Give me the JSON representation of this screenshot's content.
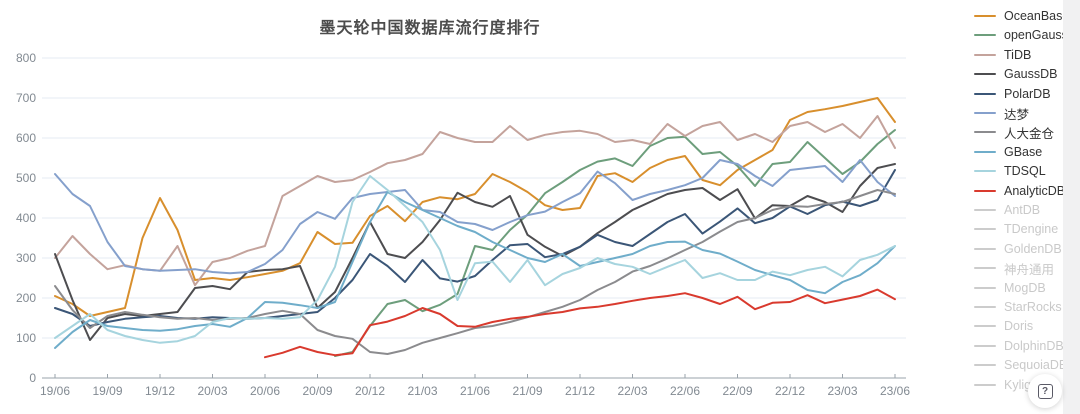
{
  "title": {
    "text": "墨天轮中国数据库流行度排行",
    "color": "#4c4c4c"
  },
  "help_button": {
    "glyph": "?"
  },
  "axis_colors": {
    "grid": "#e4ebf3",
    "axis_line": "#9aa3ab",
    "tick_label": "#828a92"
  },
  "chart_data": {
    "type": "line",
    "title": "墨天轮中国数据库流行度排行",
    "xlabel": "",
    "ylabel": "",
    "ylim": [
      0,
      800
    ],
    "y_ticks": [
      0,
      100,
      200,
      300,
      400,
      500,
      600,
      700,
      800
    ],
    "grid": true,
    "legend_position": "right",
    "x": [
      "19/06",
      "19/07",
      "19/08",
      "19/09",
      "19/10",
      "19/11",
      "19/12",
      "20/01",
      "20/02",
      "20/03",
      "20/04",
      "20/05",
      "20/06",
      "20/07",
      "20/08",
      "20/09",
      "20/10",
      "20/11",
      "20/12",
      "21/01",
      "21/02",
      "21/03",
      "21/04",
      "21/05",
      "21/06",
      "21/07",
      "21/08",
      "21/09",
      "21/10",
      "21/11",
      "21/12",
      "22/01",
      "22/02",
      "22/03",
      "22/04",
      "22/05",
      "22/06",
      "22/07",
      "22/08",
      "22/09",
      "22/10",
      "22/11",
      "22/12",
      "23/01",
      "23/02",
      "23/03",
      "23/04",
      "23/05",
      "23/06"
    ],
    "x_tick_labels": [
      "19/06",
      "19/09",
      "19/12",
      "20/03",
      "20/06",
      "20/09",
      "20/12",
      "21/03",
      "21/06",
      "21/09",
      "21/12",
      "22/03",
      "22/06",
      "22/09",
      "22/12",
      "23/03",
      "23/06"
    ],
    "series": [
      {
        "name": "OceanBase",
        "color": "#d88f2d",
        "active": true,
        "values": [
          205,
          185,
          155,
          165,
          175,
          350,
          450,
          370,
          245,
          250,
          245,
          252,
          260,
          268,
          287,
          365,
          335,
          338,
          405,
          430,
          392,
          440,
          452,
          447,
          460,
          510,
          490,
          465,
          432,
          420,
          425,
          505,
          512,
          490,
          525,
          545,
          555,
          495,
          482,
          520,
          545,
          570,
          645,
          665,
          672,
          680,
          690,
          700,
          640
        ]
      },
      {
        "name": "openGauss",
        "color": "#6d9e7c",
        "active": true,
        "values": [
          null,
          null,
          null,
          null,
          null,
          null,
          null,
          null,
          null,
          null,
          null,
          null,
          null,
          null,
          null,
          null,
          55,
          65,
          130,
          185,
          195,
          167,
          183,
          210,
          330,
          320,
          370,
          408,
          462,
          490,
          520,
          541,
          549,
          530,
          580,
          600,
          603,
          560,
          565,
          530,
          480,
          535,
          540,
          590,
          550,
          510,
          540,
          585,
          620
        ]
      },
      {
        "name": "TiDB",
        "color": "#c4a39c",
        "active": true,
        "values": [
          300,
          355,
          310,
          272,
          282,
          272,
          268,
          330,
          232,
          290,
          300,
          318,
          330,
          455,
          480,
          505,
          490,
          495,
          515,
          537,
          545,
          560,
          615,
          600,
          590,
          590,
          630,
          595,
          608,
          615,
          618,
          610,
          590,
          595,
          585,
          635,
          605,
          630,
          640,
          595,
          610,
          590,
          630,
          640,
          615,
          635,
          600,
          655,
          575
        ]
      },
      {
        "name": "GaussDB",
        "color": "#4d4d50",
        "active": true,
        "values": [
          310,
          195,
          95,
          150,
          160,
          155,
          160,
          165,
          225,
          230,
          222,
          265,
          270,
          272,
          280,
          175,
          215,
          300,
          390,
          310,
          300,
          340,
          395,
          463,
          440,
          428,
          455,
          358,
          328,
          305,
          328,
          362,
          390,
          420,
          440,
          460,
          470,
          475,
          445,
          472,
          399,
          432,
          430,
          455,
          440,
          415,
          480,
          525,
          535
        ]
      },
      {
        "name": "PolarDB",
        "color": "#3b5677",
        "active": true,
        "values": [
          175,
          160,
          130,
          140,
          148,
          152,
          155,
          150,
          148,
          152,
          150,
          148,
          150,
          155,
          160,
          165,
          200,
          245,
          310,
          280,
          240,
          295,
          249,
          241,
          255,
          295,
          332,
          335,
          302,
          310,
          328,
          358,
          340,
          330,
          360,
          390,
          410,
          361,
          391,
          424,
          387,
          400,
          429,
          410,
          432,
          441,
          430,
          445,
          520
        ]
      },
      {
        "name": "达梦",
        "color": "#85a0cc",
        "active": true,
        "values": [
          510,
          460,
          430,
          340,
          280,
          272,
          268,
          270,
          272,
          265,
          262,
          265,
          285,
          320,
          385,
          415,
          398,
          450,
          460,
          465,
          470,
          420,
          415,
          390,
          385,
          370,
          390,
          407,
          416,
          440,
          462,
          516,
          487,
          445,
          460,
          470,
          482,
          500,
          545,
          535,
          505,
          480,
          520,
          525,
          530,
          490,
          545,
          490,
          455
        ]
      },
      {
        "name": "人大金仓",
        "color": "#8b8b8e",
        "active": true,
        "values": [
          230,
          170,
          125,
          155,
          165,
          158,
          152,
          148,
          150,
          145,
          148,
          150,
          160,
          168,
          160,
          120,
          105,
          98,
          65,
          60,
          70,
          88,
          100,
          112,
          125,
          130,
          140,
          152,
          165,
          178,
          195,
          220,
          240,
          266,
          280,
          299,
          320,
          340,
          366,
          390,
          400,
          420,
          430,
          428,
          435,
          440,
          455,
          470,
          460
        ]
      },
      {
        "name": "GBase",
        "color": "#6fadca",
        "active": true,
        "values": [
          75,
          115,
          145,
          130,
          125,
          120,
          118,
          122,
          130,
          135,
          128,
          150,
          190,
          188,
          182,
          175,
          190,
          290,
          390,
          465,
          440,
          420,
          400,
          380,
          365,
          340,
          320,
          300,
          290,
          310,
          280,
          290,
          300,
          310,
          330,
          340,
          341,
          320,
          311,
          291,
          270,
          257,
          245,
          220,
          212,
          240,
          257,
          287,
          330
        ]
      },
      {
        "name": "TDSQL",
        "color": "#a6d4de",
        "active": true,
        "values": [
          100,
          130,
          160,
          120,
          105,
          95,
          88,
          92,
          105,
          140,
          150,
          148,
          150,
          148,
          152,
          195,
          278,
          440,
          505,
          470,
          430,
          390,
          320,
          195,
          287,
          291,
          240,
          295,
          232,
          260,
          275,
          300,
          285,
          278,
          260,
          278,
          295,
          250,
          262,
          245,
          245,
          266,
          257,
          270,
          278,
          254,
          295,
          308,
          330
        ]
      },
      {
        "name": "AnalyticDB",
        "color": "#d93a2e",
        "active": true,
        "values": [
          null,
          null,
          null,
          null,
          null,
          null,
          null,
          null,
          null,
          null,
          null,
          null,
          52,
          63,
          78,
          65,
          57,
          62,
          132,
          141,
          155,
          175,
          160,
          130,
          128,
          140,
          148,
          153,
          160,
          165,
          174,
          178,
          185,
          193,
          200,
          205,
          212,
          200,
          185,
          203,
          172,
          188,
          190,
          207,
          187,
          196,
          205,
          221,
          197
        ]
      },
      {
        "name": "AntDB",
        "color": "#cccccc",
        "active": false,
        "values": []
      },
      {
        "name": "TDengine",
        "color": "#cccccc",
        "active": false,
        "values": []
      },
      {
        "name": "GoldenDB",
        "color": "#cccccc",
        "active": false,
        "values": []
      },
      {
        "name": "神舟通用",
        "color": "#cccccc",
        "active": false,
        "values": []
      },
      {
        "name": "MogDB",
        "color": "#cccccc",
        "active": false,
        "values": []
      },
      {
        "name": "StarRocks",
        "color": "#cccccc",
        "active": false,
        "values": []
      },
      {
        "name": "Doris",
        "color": "#cccccc",
        "active": false,
        "values": []
      },
      {
        "name": "DolphinDB",
        "color": "#cccccc",
        "active": false,
        "values": []
      },
      {
        "name": "SequoiaDB",
        "color": "#cccccc",
        "active": false,
        "values": []
      },
      {
        "name": "Kyligence",
        "color": "#cccccc",
        "active": false,
        "values": []
      }
    ]
  }
}
